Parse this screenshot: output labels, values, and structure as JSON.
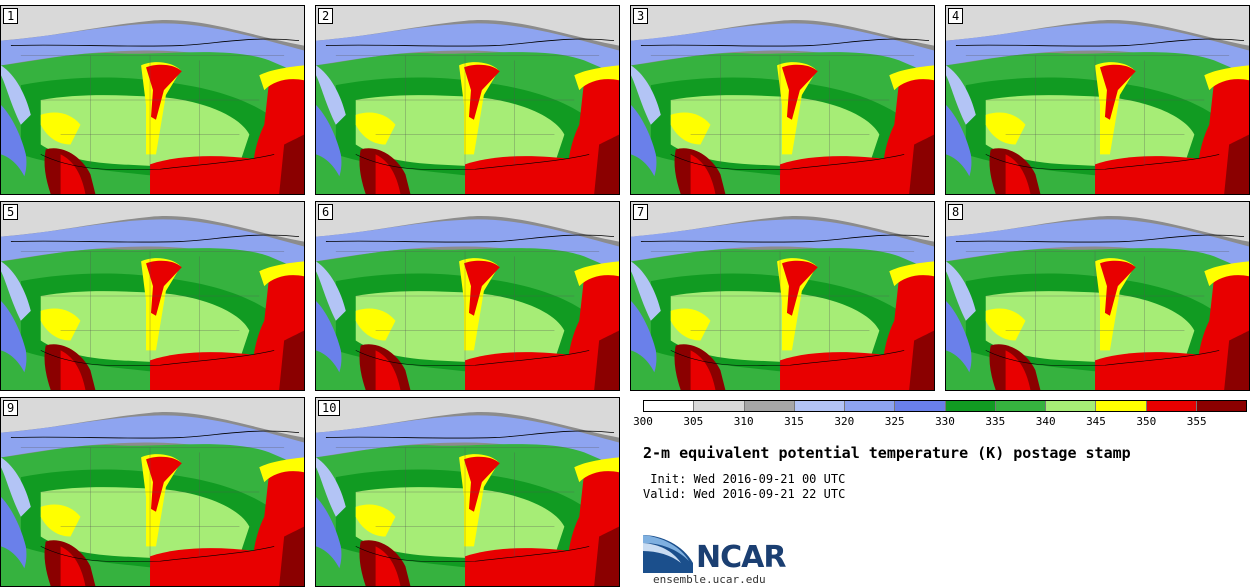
{
  "panels": [
    {
      "label": "1"
    },
    {
      "label": "2"
    },
    {
      "label": "3"
    },
    {
      "label": "4"
    },
    {
      "label": "5"
    },
    {
      "label": "6"
    },
    {
      "label": "7"
    },
    {
      "label": "8"
    },
    {
      "label": "9"
    },
    {
      "label": "10"
    }
  ],
  "colorbar": {
    "ticks": [
      "300",
      "305",
      "310",
      "315",
      "320",
      "325",
      "330",
      "335",
      "340",
      "345",
      "350",
      "355"
    ],
    "colors": [
      "#ffffff",
      "#d9d9d9",
      "#a6a6a6",
      "#b3c4f5",
      "#8ea4f0",
      "#6a80ea",
      "#119b22",
      "#36b23f",
      "#a6ed76",
      "#ffff00",
      "#e80000",
      "#8b0000"
    ]
  },
  "title": "2-m equivalent potential temperature (K) postage stamp",
  "init_line": " Init: Wed 2016-09-21 00 UTC",
  "valid_line": "Valid: Wed 2016-09-21 22 UTC",
  "logo": {
    "text": "NCAR",
    "site": "ensemble.ucar.edu"
  }
}
